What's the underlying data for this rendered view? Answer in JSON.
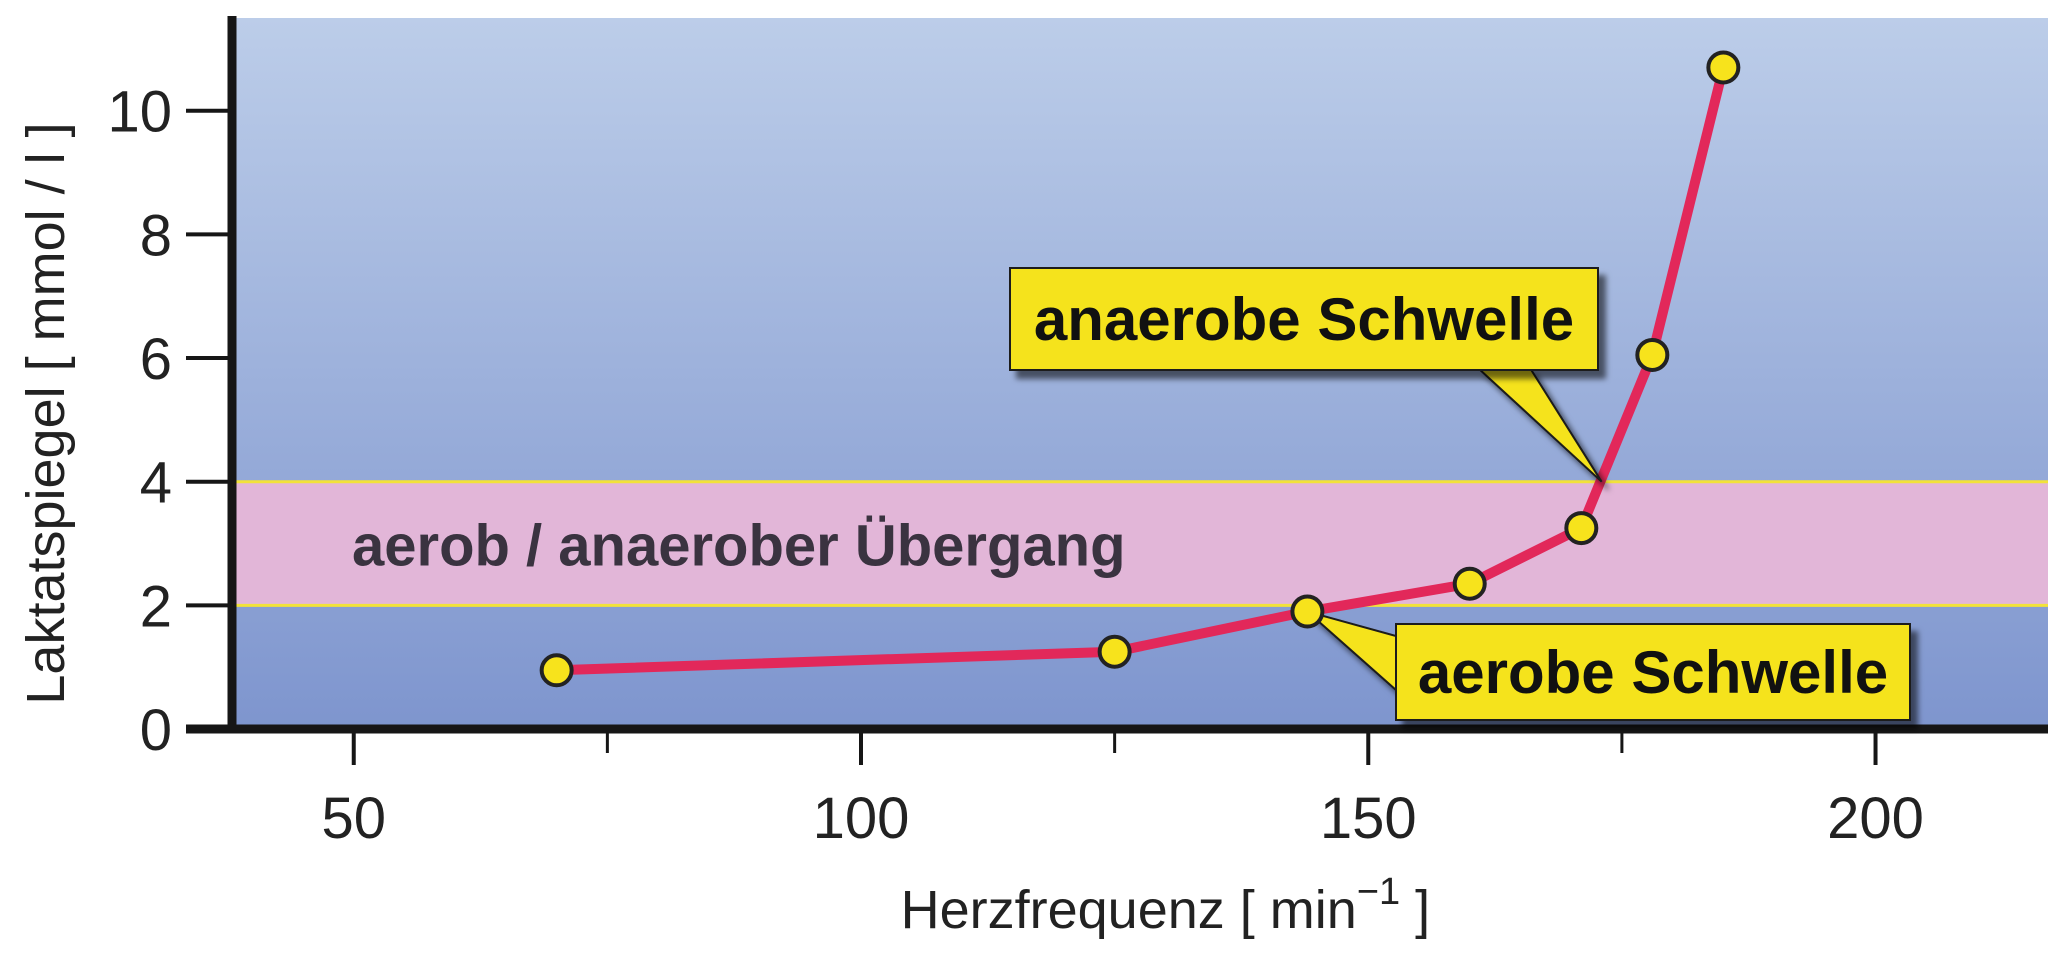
{
  "chart_data": {
    "type": "line",
    "xlabel": "Herzfrequenz [ min",
    "xlabel_sup": "−1",
    "xlabel_end": " ]",
    "ylabel": "Laktatspiegel [ mmol / l ]",
    "xlim": [
      38,
      217
    ],
    "ylim": [
      0,
      11.5
    ],
    "x_ticks": [
      50,
      100,
      150,
      200
    ],
    "x_minor_ticks": [
      75,
      125,
      175
    ],
    "y_ticks": [
      0,
      2,
      4,
      6,
      8,
      10
    ],
    "grid": false,
    "series": [
      {
        "x": [
          70,
          125,
          144,
          160,
          171,
          178,
          185
        ],
        "y": [
          0.95,
          1.25,
          1.9,
          2.35,
          3.25,
          6.05,
          10.7
        ],
        "color": "#e2285a"
      }
    ],
    "band": {
      "y_from": 2,
      "y_to": 4,
      "label": "aerob / anaerober Übergang",
      "color": "#e2b6d8"
    },
    "annotations": [
      {
        "text": "anaerobe Schwelle",
        "point": [
          173,
          4
        ]
      },
      {
        "text": "aerobe Schwelle",
        "point": [
          144,
          1.9
        ]
      }
    ],
    "colors": {
      "background_top": "#bccde9",
      "background_bottom": "#7e95ce",
      "threshold_line": "#f2e23a",
      "marker_fill": "#f7e31c",
      "callout_fill": "#f5e31b",
      "axis": "#161616"
    }
  }
}
